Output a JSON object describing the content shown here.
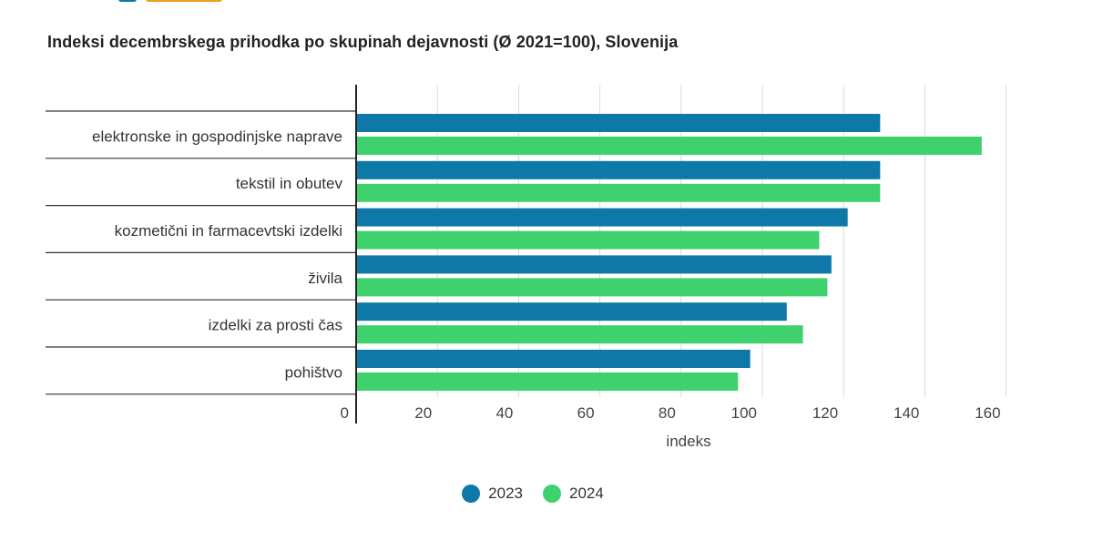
{
  "colors": {
    "2023": "#0e78a8",
    "2024": "#3fd16d",
    "grid": "#d9d9d9",
    "axis": "#333333"
  },
  "chart_data": {
    "type": "bar",
    "orientation": "horizontal",
    "title": "Indeksi decembrskega prihodka po skupinah dejavnosti (Ø 2021=100), Slovenija",
    "xlabel": "indeks",
    "ylabel": "",
    "xlim": [
      0,
      160
    ],
    "xticks": [
      0,
      20,
      40,
      60,
      80,
      100,
      120,
      140,
      160
    ],
    "grid": true,
    "legend_position": "bottom",
    "categories": [
      "elektronske in gospodinjske naprave",
      "tekstil in obutev",
      "kozmetični in farmacevtski izdelki",
      "živila",
      "izdelki za prosti čas",
      "pohištvo"
    ],
    "series": [
      {
        "name": "2023",
        "values": [
          129,
          129,
          121,
          117,
          106,
          97
        ]
      },
      {
        "name": "2024",
        "values": [
          154,
          129,
          114,
          116,
          110,
          94
        ]
      }
    ]
  }
}
